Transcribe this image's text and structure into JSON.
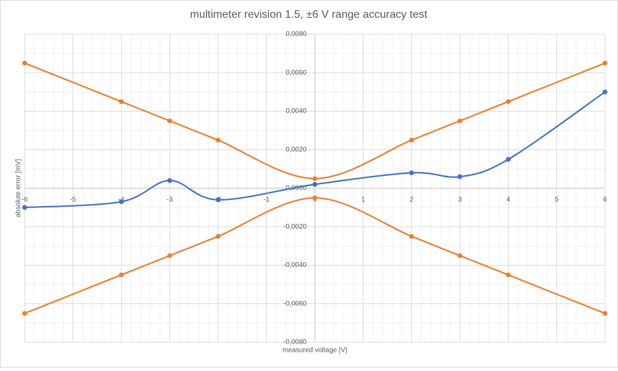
{
  "chart_data": {
    "type": "scatter",
    "title": "multimeter revision 1.5, ±6 V range accuracy test",
    "x_label": "measured voltage [V]",
    "y_label": "absolute error [mV]",
    "x": [
      -6,
      -4,
      -3,
      -2,
      0,
      2,
      3,
      4,
      6
    ],
    "series": [
      {
        "color": "#4472c4",
        "values": [
          -0.001,
          -0.0007,
          0.0004,
          -0.0006,
          0.0002,
          0.0008,
          0.0006,
          0.0015,
          0.005
        ]
      },
      {
        "color": "#ed7d31",
        "values": [
          0.0065,
          0.0045,
          0.0035,
          0.0025,
          0.0005,
          0.0025,
          0.0035,
          0.0045,
          0.0065
        ]
      },
      {
        "color": "#ed7d31",
        "values": [
          -0.0065,
          -0.0045,
          -0.0035,
          -0.0025,
          -0.0005,
          -0.0025,
          -0.0035,
          -0.0045,
          -0.0065
        ]
      }
    ],
    "smooth": true,
    "xlim": [
      -6,
      6
    ],
    "xticks": [
      -6,
      -5,
      -4,
      -3,
      -2,
      -1,
      0,
      1,
      2,
      3,
      4,
      5,
      6
    ],
    "ylim": [
      -0.008,
      0.008
    ],
    "yticks": [
      {
        "value": -0.008,
        "label": "-0,0080"
      },
      {
        "value": -0.006,
        "label": "-0,0060"
      },
      {
        "value": -0.004,
        "label": "-0,0040"
      },
      {
        "value": -0.002,
        "label": "-0,0020"
      },
      {
        "value": 0,
        "label": "0,0000"
      },
      {
        "value": 0.002,
        "label": "0,0020"
      },
      {
        "value": 0.004,
        "label": "0,0040"
      },
      {
        "value": 0.006,
        "label": "0,0060"
      },
      {
        "value": 0.008,
        "label": "0,0080"
      }
    ],
    "grid": true
  }
}
